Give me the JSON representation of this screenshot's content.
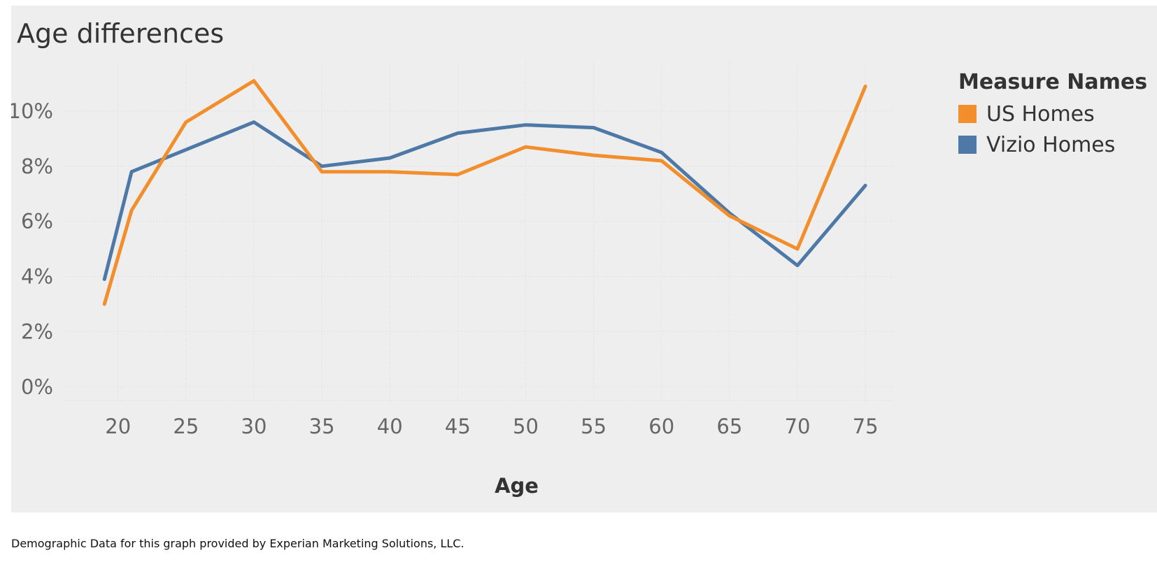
{
  "chart_data": {
    "type": "line",
    "title": "Age differences",
    "xlabel": "Age",
    "ylabel": "",
    "x_ticks": [
      20,
      25,
      30,
      35,
      40,
      45,
      50,
      55,
      60,
      65,
      70,
      75
    ],
    "y_ticks": [
      0,
      2,
      4,
      6,
      8,
      10
    ],
    "y_tick_labels": [
      "0%",
      "2%",
      "4%",
      "6%",
      "8%",
      "10%"
    ],
    "xlim": [
      16,
      77
    ],
    "ylim": [
      -0.5,
      11.8
    ],
    "grid": true,
    "legend_title": "Measure Names",
    "legend_position": "right",
    "series": [
      {
        "name": "US Homes",
        "color": "#f28e2b",
        "x": [
          19,
          21,
          25,
          30,
          35,
          40,
          45,
          50,
          55,
          60,
          65,
          70,
          75
        ],
        "values": [
          3.0,
          6.4,
          9.6,
          11.1,
          7.8,
          7.8,
          7.7,
          8.7,
          8.4,
          8.2,
          6.2,
          5.0,
          10.9
        ]
      },
      {
        "name": "Vizio Homes",
        "color": "#4e79a7",
        "x": [
          19,
          21,
          25,
          30,
          35,
          40,
          45,
          50,
          55,
          60,
          65,
          70,
          75
        ],
        "values": [
          3.9,
          7.8,
          8.6,
          9.6,
          8.0,
          8.3,
          9.2,
          9.5,
          9.4,
          8.5,
          6.3,
          4.4,
          7.3
        ]
      }
    ]
  },
  "footnote": "Demographic Data for this graph provided by Experian Marketing Solutions, LLC."
}
